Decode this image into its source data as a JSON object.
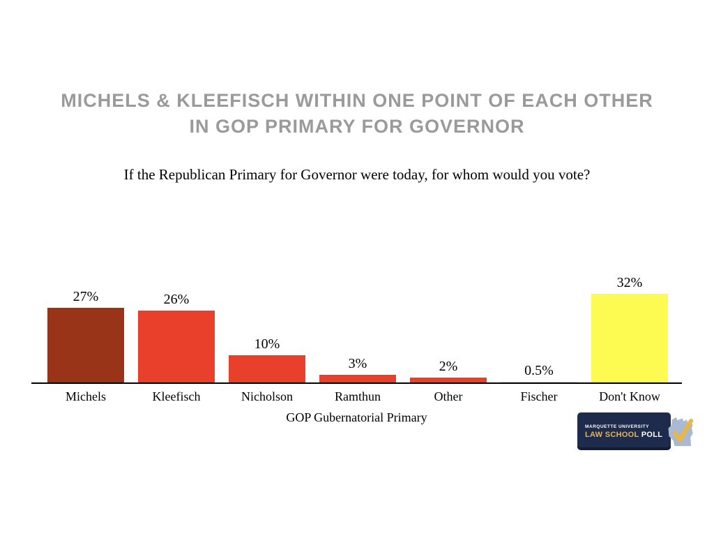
{
  "title": {
    "lines": [
      "MICHELS & KLEEFISCH WITHIN ONE POINT OF EACH OTHER",
      "IN GOP PRIMARY FOR GOVERNOR"
    ]
  },
  "subtitle": "If the Republican Primary for Governor were today, for whom would you vote?",
  "chart_data": {
    "type": "bar",
    "title": "If the Republican Primary for Governor were today, for whom would you vote?",
    "categories": [
      "Michels",
      "Kleefisch",
      "Nicholson",
      "Ramthun",
      "Other",
      "Fischer",
      "Don't Know"
    ],
    "values": [
      27,
      26,
      10,
      3,
      2,
      0.5,
      32
    ],
    "value_labels": [
      "27%",
      "26%",
      "10%",
      "3%",
      "2%",
      "0.5%",
      "32%"
    ],
    "bar_colors": [
      "#9A3419",
      "#E8402A",
      "#E8402A",
      "#E8402A",
      "#E8402A",
      "#D9DFE8",
      "#FDFA51"
    ],
    "xlabel": "GOP Gubernatorial Primary",
    "ylabel": "",
    "ylim": [
      0,
      35
    ],
    "grid": false,
    "legend": "none",
    "axis_color": "#000000"
  },
  "colors": {
    "title_text": "#9A9A9A",
    "dark_red": "#9A3419",
    "red": "#E8402A",
    "yellow": "#FDFA51",
    "fischer_gray_blue": "#D9DFE8"
  },
  "logo": {
    "line1": "MARQUETTE UNIVERSITY",
    "line2_gold": "LAW SCHOOL",
    "line2_white": "POLL",
    "bg_color": "#1E2B4C",
    "gold_color": "#E9B648",
    "state_color": "#A9B9D2"
  }
}
